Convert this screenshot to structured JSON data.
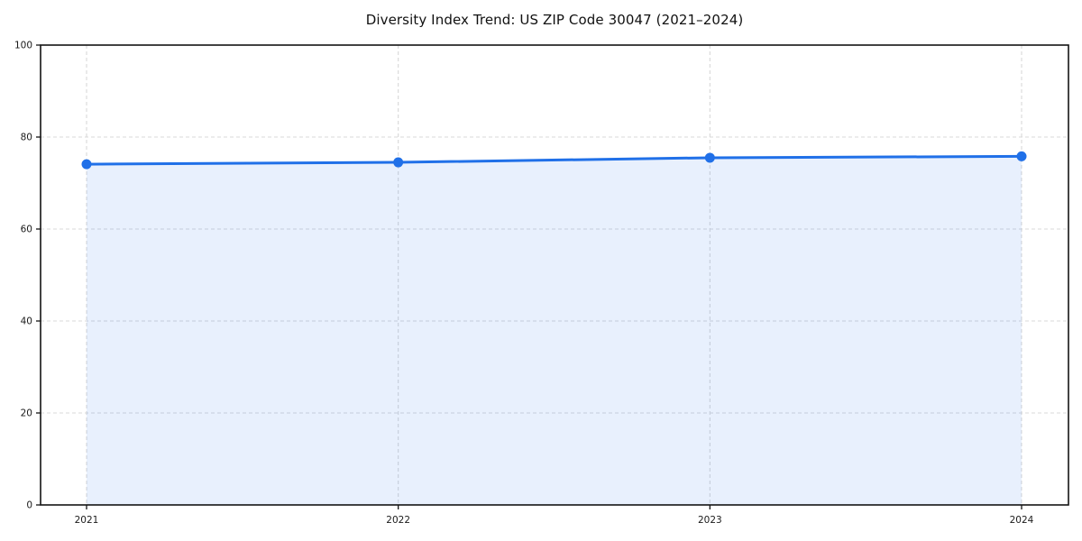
{
  "figure": {
    "background": "#ffffff"
  },
  "chart_data": {
    "type": "line",
    "title": "Diversity Index Trend: US ZIP Code 30047 (2021–2024)",
    "x": [
      2021,
      2022,
      2023,
      2024
    ],
    "xticklabels": [
      "2021",
      "2022",
      "2023",
      "2024"
    ],
    "series": [
      {
        "name": "Diversity Index",
        "values": [
          74.1,
          74.5,
          75.5,
          75.8
        ]
      }
    ],
    "xlabel": "",
    "ylabel": "",
    "ylim": [
      0,
      100
    ],
    "yticks": [
      0,
      20,
      40,
      60,
      80,
      100
    ],
    "yticklabels": [
      "0",
      "20",
      "40",
      "60",
      "80",
      "100"
    ],
    "grid": true,
    "grid_style": "dashed",
    "legend_position": "none",
    "area_fill": true,
    "marker": "circle"
  },
  "colors": {
    "line": "#2070e8",
    "marker": "#2070e8",
    "area_fill": "rgba(32,112,232,0.10)",
    "grid": "#d8d8d8",
    "spine": "#141414",
    "tick_text": "#1a1a1a",
    "title_text": "#111111",
    "background": "#ffffff"
  }
}
